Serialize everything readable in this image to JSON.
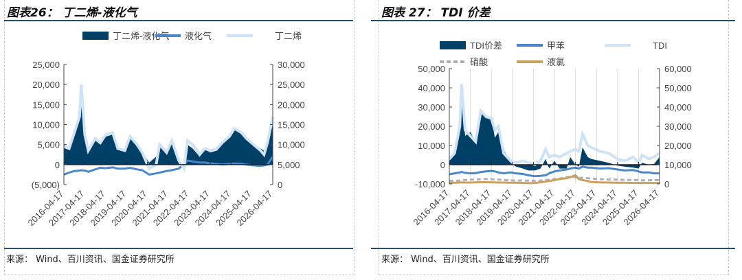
{
  "left": {
    "title": "图表26： 丁二烯-液化气",
    "source": "来源： Wind、百川资讯、国金证券研究所"
  },
  "right": {
    "title": "图表 27： TDI 价差",
    "source": "来源： Wind、百川资讯、国金证券研究所"
  },
  "chart_data": [
    {
      "type": "area+line",
      "title": "丁二烯-液化气",
      "xticks": [
        "2016-04-17",
        "2017-04-17",
        "2018-04-17",
        "2019-04-17",
        "2020-04-17",
        "2021-04-17",
        "2022-04-17",
        "2023-04-17",
        "2024-04-17",
        "2025-04-17",
        "2026-04-17"
      ],
      "xlim": [
        "2016-04",
        "2026-04"
      ],
      "y_left": {
        "lim": [
          -5000,
          25000
        ],
        "ticks": [
          "(5,000)",
          "0",
          "5,000",
          "10,000",
          "15,000",
          "20,000",
          "25,000"
        ],
        "negative_color": "#ff0000"
      },
      "y_right": {
        "lim": [
          0,
          30000
        ],
        "ticks": [
          "0",
          "5,000",
          "10,000",
          "15,000",
          "20,000",
          "25,000",
          "30,000"
        ]
      },
      "x": [
        "2016-04",
        "2016-07",
        "2016-10",
        "2017-01",
        "2017-02",
        "2017-04",
        "2017-06",
        "2017-10",
        "2018-01",
        "2018-04",
        "2018-08",
        "2018-11",
        "2019-03",
        "2019-06",
        "2019-10",
        "2020-01",
        "2020-05",
        "2020-09",
        "2020-11",
        "2021-03",
        "2021-06",
        "2021-10",
        "2022-01",
        "2022-03",
        "2022-06",
        "2022-10",
        "2023-01",
        "2023-04",
        "2023-08",
        "2023-11",
        "2024-03",
        "2024-06",
        "2024-10",
        "2025-01",
        "2025-05",
        "2025-09",
        "2025-11",
        "2026-01",
        "2026-04"
      ],
      "series": [
        {
          "name": "丁二烯-液化气",
          "axis": "left",
          "style": "area",
          "color": "#003f66",
          "values": [
            5000,
            4000,
            8000,
            12000,
            20000,
            8000,
            3000,
            6000,
            5000,
            7000,
            7500,
            4000,
            3500,
            7000,
            5000,
            3000,
            500,
            2000,
            5500,
            3000,
            6500,
            1000,
            -1000,
            5000,
            4000,
            2000,
            4000,
            3000,
            3500,
            5000,
            7000,
            9000,
            7500,
            6000,
            5000,
            4000,
            3500,
            5000,
            10000
          ]
        },
        {
          "name": "液化气",
          "axis": "right",
          "style": "line",
          "color": "#4a86c8",
          "values": [
            2500,
            3000,
            3400,
            3500,
            3600,
            3500,
            3200,
            3800,
            4200,
            4100,
            4300,
            4000,
            4000,
            4200,
            3800,
            3600,
            2500,
            2800,
            3000,
            3400,
            3600,
            4000,
            5000,
            6000,
            5800,
            5500,
            5500,
            5300,
            5200,
            5000,
            5200,
            5300,
            5200,
            5000,
            4800,
            4700,
            4800,
            5000,
            7000
          ]
        },
        {
          "name": "丁二烯",
          "axis": "right",
          "style": "line",
          "color": "#cfe3f5",
          "values": [
            9500,
            9000,
            13000,
            17000,
            25000,
            12500,
            8500,
            11500,
            10500,
            12500,
            13000,
            9000,
            8500,
            12000,
            10000,
            8000,
            4000,
            5000,
            10000,
            8000,
            11000,
            6000,
            4000,
            11000,
            10000,
            7500,
            9000,
            8500,
            9000,
            10500,
            12000,
            14000,
            13000,
            11500,
            10000,
            8500,
            7500,
            10500,
            17000
          ]
        }
      ],
      "legend": "top"
    },
    {
      "type": "area+line",
      "title": "TDI价差",
      "xticks": [
        "2016-04-17",
        "2017-04-17",
        "2018-04-17",
        "2019-04-17",
        "2020-04-17",
        "2021-04-17",
        "2022-04-17",
        "2023-04-17",
        "2024-04-17",
        "2025-04-17",
        "2026-04-17"
      ],
      "xlim": [
        "2016-04",
        "2026-04"
      ],
      "y_left": {
        "lim": [
          -10000,
          50000
        ],
        "ticks": [
          "-10,000",
          "0",
          "10,000",
          "20,000",
          "30,000",
          "40,000",
          "50,000"
        ]
      },
      "y_right": {
        "lim": [
          0,
          60000
        ],
        "ticks": [
          "0",
          "10,000",
          "20,000",
          "30,000",
          "40,000",
          "50,000",
          "60,000"
        ]
      },
      "grid": "vertical",
      "x": [
        "2016-04",
        "2016-07",
        "2016-10",
        "2016-11",
        "2017-01",
        "2017-04",
        "2017-07",
        "2017-10",
        "2018-01",
        "2018-04",
        "2018-06",
        "2018-08",
        "2018-11",
        "2019-03",
        "2019-06",
        "2019-10",
        "2020-01",
        "2020-05",
        "2020-08",
        "2020-11",
        "2021-01",
        "2021-04",
        "2021-07",
        "2021-11",
        "2022-01",
        "2022-04",
        "2022-06",
        "2022-08",
        "2022-11",
        "2023-01",
        "2023-06",
        "2023-11",
        "2024-04",
        "2024-08",
        "2025-01",
        "2025-04",
        "2025-06",
        "2025-10",
        "2026-01",
        "2026-04"
      ],
      "series": [
        {
          "name": "TDI价差",
          "axis": "left",
          "style": "area",
          "color": "#003f66",
          "values": [
            2000,
            5000,
            20000,
            38000,
            15000,
            17000,
            12000,
            27000,
            25000,
            25000,
            14000,
            17000,
            8000,
            1000,
            -1000,
            -2000,
            -3000,
            -3000,
            -2000,
            3000,
            -2000,
            2000,
            -2000,
            -2000,
            4000,
            0,
            -1000,
            9000,
            4000,
            3000,
            2000,
            1000,
            -500,
            -1000,
            -1500,
            -2000,
            1000,
            0,
            500,
            4000
          ]
        },
        {
          "name": "甲苯",
          "axis": "right",
          "style": "line",
          "color": "#4a86c8",
          "values": [
            5000,
            5500,
            6000,
            6200,
            5800,
            5500,
            5600,
            6200,
            6500,
            6800,
            6500,
            6000,
            5500,
            6000,
            5500,
            5200,
            4500,
            4000,
            4200,
            4500,
            5500,
            6500,
            7000,
            7500,
            8000,
            8500,
            8000,
            9000,
            8500,
            8500,
            8000,
            8200,
            7500,
            7000,
            7200,
            6500,
            6000,
            6000,
            5500,
            5500
          ]
        },
        {
          "name": "TDI",
          "axis": "right",
          "style": "line",
          "color": "#cfe3f5",
          "values": [
            13000,
            16000,
            30000,
            52000,
            28000,
            25000,
            22000,
            38000,
            35000,
            34000,
            28000,
            30000,
            16000,
            12000,
            11000,
            12000,
            11000,
            10000,
            12000,
            18000,
            14000,
            15000,
            14000,
            16000,
            17000,
            18000,
            17000,
            26000,
            20000,
            19000,
            17000,
            16000,
            13000,
            12000,
            14000,
            11000,
            15000,
            13000,
            14000,
            16000
          ]
        },
        {
          "name": "硝酸",
          "axis": "right",
          "style": "dash",
          "color": "#b0b0b0",
          "values": [
            1500,
            1600,
            1800,
            2000,
            2000,
            2200,
            2300,
            2500,
            2600,
            2400,
            2300,
            2200,
            2000,
            1900,
            1800,
            1800,
            1700,
            1600,
            1700,
            2000,
            2200,
            2500,
            2800,
            3500,
            3800,
            3500,
            3000,
            3200,
            3000,
            2800,
            2500,
            2300,
            2200,
            2100,
            2000,
            2000,
            1900,
            1900,
            2000,
            2000
          ]
        },
        {
          "name": "液氯",
          "axis": "right",
          "style": "line",
          "color": "#c8a060",
          "values": [
            500,
            600,
            700,
            800,
            700,
            700,
            800,
            900,
            900,
            800,
            800,
            700,
            700,
            600,
            600,
            500,
            400,
            500,
            800,
            1200,
            1500,
            2000,
            2500,
            3000,
            3500,
            4500,
            2500,
            2000,
            1500,
            1000,
            800,
            700,
            600,
            600,
            500,
            500,
            500,
            500,
            500,
            500
          ]
        }
      ],
      "legend": "top"
    }
  ]
}
